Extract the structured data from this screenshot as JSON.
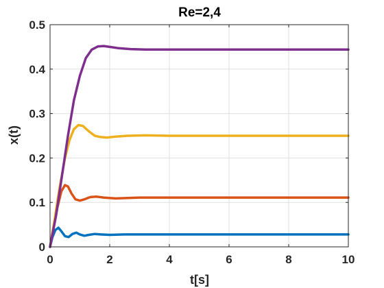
{
  "chart_data": {
    "type": "line",
    "title": "Re=2,4",
    "xlabel": "t[s]",
    "ylabel": "x(t)",
    "xlim": [
      0,
      10
    ],
    "ylim": [
      0,
      0.5
    ],
    "xticks": [
      0,
      2,
      4,
      6,
      8,
      10
    ],
    "yticks": [
      0,
      0.1,
      0.2,
      0.3,
      0.4,
      0.5
    ],
    "xtick_labels": [
      "0",
      "2",
      "4",
      "6",
      "8",
      "10"
    ],
    "ytick_labels": [
      "0",
      "0.1",
      "0.2",
      "0.3",
      "0.4",
      "0.5"
    ],
    "grid": true,
    "legend": "none",
    "series": [
      {
        "color": "#0072BD",
        "points": [
          [
            0,
            0
          ],
          [
            0.08,
            0.022
          ],
          [
            0.18,
            0.038
          ],
          [
            0.28,
            0.043
          ],
          [
            0.38,
            0.035
          ],
          [
            0.5,
            0.024
          ],
          [
            0.62,
            0.022
          ],
          [
            0.75,
            0.029
          ],
          [
            0.88,
            0.032
          ],
          [
            1.0,
            0.028
          ],
          [
            1.15,
            0.025
          ],
          [
            1.3,
            0.027
          ],
          [
            1.5,
            0.029
          ],
          [
            1.7,
            0.028
          ],
          [
            2.0,
            0.027
          ],
          [
            2.5,
            0.028
          ],
          [
            10,
            0.028
          ]
        ]
      },
      {
        "color": "#D95319",
        "points": [
          [
            0,
            0
          ],
          [
            0.12,
            0.045
          ],
          [
            0.25,
            0.09
          ],
          [
            0.38,
            0.125
          ],
          [
            0.5,
            0.139
          ],
          [
            0.6,
            0.136
          ],
          [
            0.72,
            0.12
          ],
          [
            0.85,
            0.107
          ],
          [
            1.0,
            0.104
          ],
          [
            1.15,
            0.107
          ],
          [
            1.35,
            0.112
          ],
          [
            1.55,
            0.113
          ],
          [
            1.8,
            0.111
          ],
          [
            2.2,
            0.109
          ],
          [
            2.6,
            0.11
          ],
          [
            3.0,
            0.111
          ],
          [
            10,
            0.111
          ]
        ]
      },
      {
        "color": "#EDB120",
        "points": [
          [
            0,
            0
          ],
          [
            0.15,
            0.06
          ],
          [
            0.3,
            0.125
          ],
          [
            0.5,
            0.2
          ],
          [
            0.65,
            0.24
          ],
          [
            0.8,
            0.265
          ],
          [
            0.95,
            0.274
          ],
          [
            1.1,
            0.272
          ],
          [
            1.3,
            0.26
          ],
          [
            1.5,
            0.25
          ],
          [
            1.7,
            0.247
          ],
          [
            1.9,
            0.246
          ],
          [
            2.2,
            0.248
          ],
          [
            2.6,
            0.25
          ],
          [
            3.2,
            0.251
          ],
          [
            4.0,
            0.25
          ],
          [
            10,
            0.25
          ]
        ]
      },
      {
        "color": "#7E2F8E",
        "points": [
          [
            0,
            0
          ],
          [
            0.2,
            0.07
          ],
          [
            0.4,
            0.16
          ],
          [
            0.6,
            0.25
          ],
          [
            0.8,
            0.33
          ],
          [
            1.0,
            0.385
          ],
          [
            1.2,
            0.425
          ],
          [
            1.4,
            0.444
          ],
          [
            1.6,
            0.451
          ],
          [
            1.8,
            0.452
          ],
          [
            2.0,
            0.45
          ],
          [
            2.3,
            0.447
          ],
          [
            2.7,
            0.445
          ],
          [
            3.2,
            0.444
          ],
          [
            4.0,
            0.444
          ],
          [
            10,
            0.444
          ]
        ]
      }
    ]
  }
}
